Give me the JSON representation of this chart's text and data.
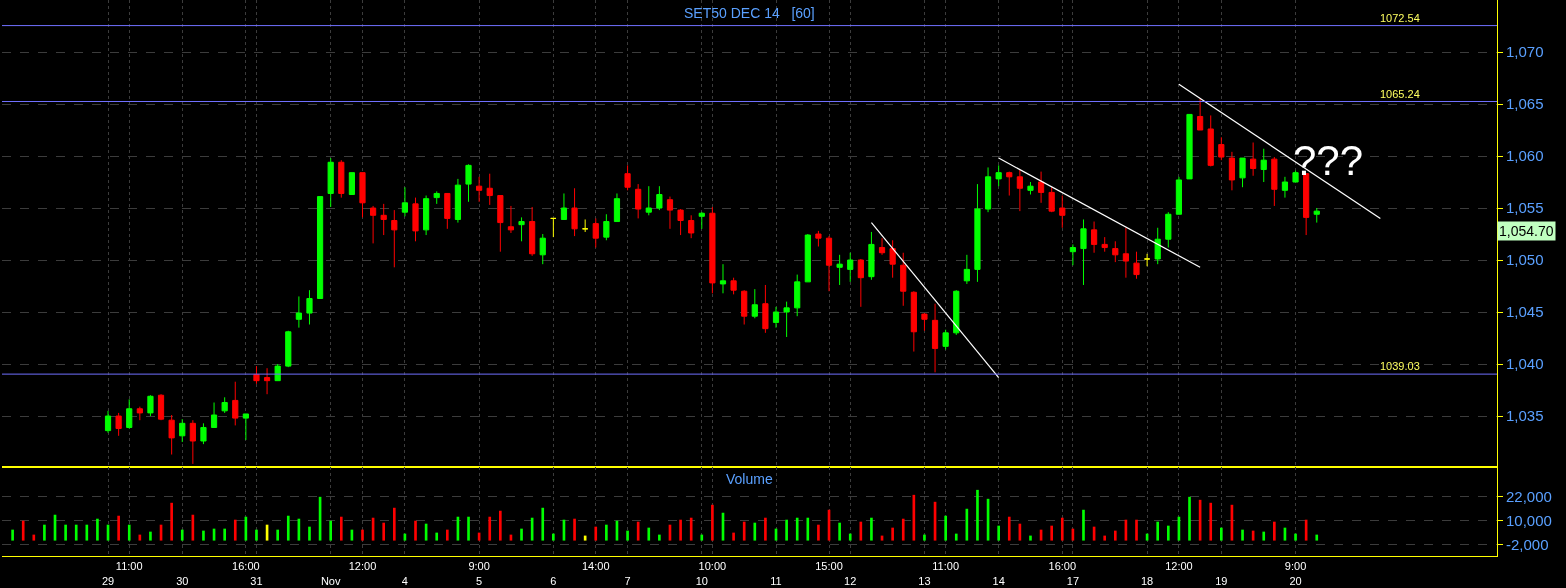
{
  "chart_data": [
    {
      "type": "candlestick",
      "title": "SET50 DEC 14   [60]",
      "categories": [
        null,
        null,
        null,
        null,
        null,
        null,
        null,
        null,
        null,
        null,
        null,
        null,
        null,
        null,
        null,
        null,
        null,
        null,
        null,
        null,
        null,
        null,
        null,
        null,
        null,
        null,
        null,
        null,
        null,
        null,
        null,
        null,
        null,
        null,
        null,
        null,
        null,
        null,
        null,
        null,
        null,
        null,
        null,
        null,
        null,
        null,
        null,
        null,
        null,
        null,
        null,
        null,
        null,
        null,
        null,
        null,
        null,
        null,
        null,
        null,
        null,
        null,
        null,
        null,
        null,
        null,
        null,
        null,
        null,
        null,
        null,
        null,
        null,
        null,
        null,
        null,
        null,
        null,
        null,
        null,
        null,
        null,
        null,
        null,
        null,
        null,
        null,
        null,
        null,
        null,
        null,
        null,
        null,
        null,
        null,
        null,
        null,
        null,
        null,
        null,
        null,
        null,
        null,
        null,
        null,
        null,
        null,
        null,
        null,
        null,
        null,
        null,
        null,
        null,
        null,
        null,
        null,
        null,
        null,
        null,
        null,
        null,
        null,
        null,
        null,
        null,
        null,
        null,
        null,
        null,
        null,
        null,
        null,
        null,
        null,
        null,
        null,
        null,
        null,
        null,
        null
      ],
      "ohlc": [
        null,
        null,
        null,
        null,
        null,
        null,
        null,
        null,
        null,
        [
          1033.6,
          1035.5,
          1033.4,
          1035.0
        ],
        [
          1035.0,
          1035.3,
          1033.1,
          1033.8
        ],
        [
          1033.9,
          1036.6,
          1033.8,
          1035.7
        ],
        [
          1035.7,
          1035.9,
          1034.6,
          1035.3
        ],
        [
          1035.3,
          1037.0,
          1035.0,
          1036.9
        ],
        [
          1037.0,
          1037.1,
          1034.6,
          1034.7
        ],
        [
          1034.6,
          1035.1,
          1031.3,
          1032.9
        ],
        [
          1033.1,
          1034.7,
          1032.5,
          1034.3
        ],
        [
          1034.3,
          1034.6,
          1030.4,
          1032.6
        ],
        [
          1032.6,
          1034.3,
          1032.3,
          1033.9
        ],
        [
          1033.9,
          1036.3,
          1033.9,
          1035.1
        ],
        [
          1035.5,
          1036.8,
          1035.3,
          1036.3
        ],
        [
          1036.5,
          1038.3,
          1034.1,
          1034.8
        ],
        [
          1034.8,
          1035.2,
          1032.7,
          1035.2
        ],
        [
          1039.0,
          1039.8,
          1038.1,
          1038.4
        ],
        [
          1038.7,
          1039.6,
          1037.1,
          1038.4
        ],
        [
          1038.4,
          1040.0,
          1038.4,
          1039.8
        ],
        [
          1039.8,
          1043.2,
          1039.7,
          1043.1
        ],
        [
          1044.3,
          1046.5,
          1043.5,
          1044.9
        ],
        [
          1044.9,
          1047.1,
          1043.8,
          1046.3
        ],
        [
          1046.3,
          1056.1,
          1046.3,
          1056.1
        ],
        [
          1056.4,
          1059.8,
          1055.1,
          1059.4
        ],
        [
          1059.4,
          1059.6,
          1056.0,
          1056.4
        ],
        [
          1056.3,
          1058.4,
          1056.3,
          1058.4
        ],
        [
          1058.4,
          1058.4,
          1054.1,
          1055.5
        ],
        [
          1055.0,
          1055.2,
          1051.6,
          1054.3
        ],
        [
          1054.3,
          1055.4,
          1052.4,
          1053.9
        ],
        [
          1053.8,
          1054.8,
          1049.3,
          1052.9
        ],
        [
          1054.6,
          1057.0,
          1054.2,
          1055.5
        ],
        [
          1055.4,
          1056.0,
          1051.8,
          1052.8
        ],
        [
          1052.9,
          1056.2,
          1052.4,
          1055.9
        ],
        [
          1056.0,
          1056.6,
          1055.4,
          1056.4
        ],
        [
          1056.4,
          1056.4,
          1053.0,
          1054.0
        ],
        [
          1053.9,
          1057.8,
          1053.6,
          1057.2
        ],
        [
          1057.3,
          1059.2,
          1055.6,
          1059.1
        ],
        [
          1057.1,
          1058.0,
          1055.6,
          1056.7
        ],
        [
          1056.9,
          1058.3,
          1055.3,
          1056.2
        ],
        [
          1056.2,
          1056.2,
          1050.8,
          1053.6
        ],
        [
          1053.2,
          1055.2,
          1052.6,
          1052.9
        ],
        [
          1053.4,
          1054.1,
          1051.8,
          1053.7
        ],
        [
          1053.7,
          1055.1,
          1050.4,
          1050.6
        ],
        [
          1050.5,
          1052.5,
          1049.6,
          1052.1
        ],
        [
          1054.0,
          1054.0,
          1052.2,
          1054.0
        ],
        [
          1053.9,
          1056.4,
          1053.9,
          1055.0
        ],
        [
          1055.0,
          1056.9,
          1052.3,
          1053.0
        ],
        [
          1053.0,
          1053.9,
          1052.7,
          1053.0
        ],
        [
          1053.5,
          1054.0,
          1051.2,
          1052.1
        ],
        [
          1052.2,
          1054.4,
          1051.9,
          1053.7
        ],
        [
          1053.7,
          1056.4,
          1053.7,
          1055.9
        ],
        [
          1058.3,
          1059.1,
          1056.7,
          1057.0
        ],
        [
          1056.8,
          1057.3,
          1054.0,
          1054.9
        ],
        [
          1054.6,
          1057.1,
          1054.3,
          1055.0
        ],
        [
          1055.0,
          1057.1,
          1054.8,
          1056.3
        ],
        [
          1055.8,
          1056.1,
          1053.0,
          1054.8
        ],
        [
          1054.8,
          1054.9,
          1052.4,
          1053.8
        ],
        [
          1053.8,
          1054.3,
          1052.1,
          1052.6
        ],
        [
          1054.2,
          1054.6,
          1053.0,
          1054.5
        ],
        [
          1054.5,
          1055.1,
          1046.8,
          1047.8
        ],
        [
          1047.7,
          1049.6,
          1046.8,
          1048.0
        ],
        [
          1048.0,
          1048.3,
          1046.7,
          1047.1
        ],
        [
          1047.0,
          1047.1,
          1043.8,
          1044.6
        ],
        [
          1044.6,
          1047.2,
          1044.4,
          1045.7
        ],
        [
          1045.8,
          1047.6,
          1043.0,
          1043.4
        ],
        [
          1044.0,
          1045.5,
          1043.5,
          1045.0
        ],
        [
          1045.0,
          1046.0,
          1042.6,
          1045.4
        ],
        [
          1045.4,
          1048.6,
          1044.6,
          1047.9
        ],
        [
          1047.9,
          1052.5,
          1047.9,
          1052.4
        ],
        [
          1052.5,
          1052.8,
          1051.3,
          1052.1
        ],
        [
          1052.1,
          1052.3,
          1047.0,
          1049.5
        ],
        [
          1049.3,
          1050.5,
          1047.6,
          1049.6
        ],
        [
          1049.1,
          1050.7,
          1047.9,
          1050.0
        ],
        [
          1050.0,
          1050.1,
          1045.5,
          1048.3
        ],
        [
          1048.4,
          1052.7,
          1048.1,
          1051.5
        ],
        [
          1051.2,
          1052.1,
          1050.5,
          1050.7
        ],
        [
          1051.1,
          1051.9,
          1048.3,
          1049.6
        ],
        [
          1049.5,
          1050.7,
          1045.6,
          1047.0
        ],
        [
          1046.9,
          1047.0,
          1041.2,
          1043.1
        ],
        [
          1044.8,
          1044.9,
          1043.2,
          1044.3
        ],
        [
          1044.2,
          1045.8,
          1039.2,
          1041.5
        ],
        [
          1041.7,
          1043.3,
          1041.4,
          1043.0
        ],
        [
          1043.0,
          1047.1,
          1042.8,
          1047.0
        ],
        [
          1048.0,
          1050.5,
          1047.7,
          1049.1
        ],
        [
          1049.1,
          1057.3,
          1047.9,
          1054.9
        ],
        [
          1054.9,
          1058.9,
          1054.6,
          1058.0
        ],
        [
          1057.8,
          1059.1,
          1057.1,
          1058.4
        ],
        [
          1058.4,
          1058.5,
          1056.2,
          1058.0
        ],
        [
          1058.0,
          1058.7,
          1054.7,
          1056.9
        ],
        [
          1056.7,
          1057.5,
          1056.3,
          1057.1
        ],
        [
          1057.5,
          1058.5,
          1055.5,
          1056.5
        ],
        [
          1056.5,
          1057.0,
          1054.6,
          1054.7
        ],
        [
          1055.0,
          1056.2,
          1053.1,
          1054.3
        ],
        [
          1050.8,
          1051.5,
          1049.5,
          1051.2
        ],
        [
          1051.1,
          1053.9,
          1047.6,
          1053.0
        ],
        [
          1052.9,
          1053.7,
          1050.7,
          1051.5
        ],
        [
          1051.5,
          1052.2,
          1050.8,
          1051.2
        ],
        [
          1051.1,
          1051.8,
          1049.8,
          1050.5
        ],
        [
          1050.6,
          1053.1,
          1048.3,
          1049.9
        ],
        [
          1049.7,
          1050.8,
          1048.2,
          1048.6
        ],
        [
          1050.1,
          1050.6,
          1049.4,
          1050.1
        ],
        [
          1050.1,
          1053.1,
          1049.6,
          1052.0
        ],
        [
          1052.0,
          1054.6,
          1051.2,
          1054.4
        ],
        [
          1054.4,
          1058.0,
          1054.4,
          1057.7
        ],
        [
          1057.8,
          1064.0,
          1057.8,
          1064.0
        ],
        [
          1063.8,
          1065.5,
          1062.5,
          1062.5
        ],
        [
          1062.6,
          1063.9,
          1059.0,
          1059.1
        ],
        [
          1061.1,
          1061.8,
          1059.6,
          1059.9
        ],
        [
          1059.8,
          1060.4,
          1056.7,
          1057.7
        ],
        [
          1057.9,
          1059.8,
          1057.0,
          1059.8
        ],
        [
          1059.7,
          1061.3,
          1058.1,
          1058.8
        ],
        [
          1058.7,
          1060.7,
          1057.5,
          1059.6
        ],
        [
          1059.7,
          1059.9,
          1055.2,
          1056.8
        ],
        [
          1056.7,
          1058.0,
          1056.0,
          1057.5
        ],
        [
          1057.5,
          1058.6,
          1057.5,
          1058.4
        ],
        [
          1058.3,
          1058.3,
          1052.4,
          1054.1
        ],
        [
          1054.4,
          1055.0,
          1053.6,
          1054.7
        ],
        null,
        null,
        null,
        null,
        null,
        null,
        null,
        null,
        null,
        null,
        null,
        null,
        null,
        null,
        null,
        null,
        null
      ],
      "colors": [
        null,
        null,
        null,
        null,
        null,
        null,
        null,
        null,
        null,
        "#00ff00",
        "#ff0000",
        "#00ff00",
        "#ff0000",
        "#00ff00",
        "#ff0000",
        "#ff0000",
        "#00ff00",
        "#ff0000",
        "#00ff00",
        "#00ff00",
        "#00ff00",
        "#ff0000",
        "#00ff00",
        "#ff0000",
        "#ff0000",
        "#00ff00",
        "#00ff00",
        "#00ff00",
        "#00ff00",
        "#00ff00",
        "#00ff00",
        "#ff0000",
        "#00ff00",
        "#ff0000",
        "#ff0000",
        "#ff0000",
        "#ff0000",
        "#00ff00",
        "#ff0000",
        "#00ff00",
        "#00ff00",
        "#ff0000",
        "#00ff00",
        "#00ff00",
        "#ff0000",
        "#ff0000",
        "#ff0000",
        "#ff0000",
        "#00ff00",
        "#ff0000",
        "#00ff00",
        "#ffff00",
        "#00ff00",
        "#ff0000",
        "#ffff00",
        "#ff0000",
        "#00ff00",
        "#00ff00",
        "#ff0000",
        "#ff0000",
        "#00ff00",
        "#00ff00",
        "#ff0000",
        "#ff0000",
        "#ff0000",
        "#00ff00",
        "#ff0000",
        "#00ff00",
        "#ff0000",
        "#ff0000",
        "#00ff00",
        "#ff0000",
        "#00ff00",
        "#00ff00",
        "#00ff00",
        "#00ff00",
        "#ff0000",
        "#ff0000",
        "#00ff00",
        "#00ff00",
        "#ff0000",
        "#00ff00",
        "#ff0000",
        "#ff0000",
        "#ff0000",
        "#ff0000",
        "#ff0000",
        "#ff0000",
        "#00ff00",
        "#00ff00",
        "#00ff00",
        "#00ff00",
        "#00ff00",
        "#00ff00",
        "#ff0000",
        "#ff0000",
        "#00ff00",
        "#ff0000",
        "#ff0000",
        "#ff0000",
        "#00ff00",
        "#00ff00",
        "#ff0000",
        "#ff0000",
        "#ff0000",
        "#ff0000",
        "#ff0000",
        "#ffff00",
        "#00ff00",
        "#00ff00",
        "#00ff00",
        "#00ff00",
        "#ff0000",
        "#ff0000",
        "#ff0000",
        "#ff0000",
        "#00ff00",
        "#ff0000",
        "#00ff00",
        "#ff0000",
        "#00ff00",
        "#00ff00",
        "#ff0000",
        "#00ff00",
        null,
        null,
        null,
        null,
        null,
        null,
        null,
        null,
        null,
        null,
        null,
        null,
        null,
        null,
        null,
        null,
        null
      ],
      "series": [
        {
          "type": "line",
          "color": "#ffffff",
          "values": [
            null,
            null,
            null,
            null,
            null,
            null,
            null,
            null,
            null,
            null,
            null,
            null,
            null,
            null,
            null,
            null,
            null,
            null,
            null,
            null,
            null,
            null,
            null,
            null,
            null,
            null,
            null,
            null,
            null,
            null,
            null,
            null,
            null,
            null,
            null,
            null,
            null,
            null,
            null,
            null,
            null,
            null,
            null,
            null,
            null,
            null,
            null,
            null,
            null,
            null,
            null,
            null,
            null,
            null,
            null,
            null,
            null,
            null,
            null,
            null,
            null,
            null,
            null,
            null,
            null,
            null,
            null,
            null,
            null,
            null,
            null,
            null,
            null,
            null,
            null,
            null,
            null,
            null,
            null,
            null,
            null,
            1053.6,
            null,
            null,
            null,
            null,
            null,
            null,
            null,
            null,
            null,
            null,
            null,
            1038.7,
            null,
            null,
            null,
            null,
            null,
            null,
            null,
            null,
            null,
            null,
            null,
            null,
            null,
            null,
            null,
            null,
            null,
            null,
            null,
            null,
            null,
            null,
            null,
            null,
            null,
            null,
            null,
            null,
            null,
            null,
            null,
            null,
            null,
            null,
            null,
            null,
            null,
            null,
            null,
            null,
            null,
            null,
            null,
            null,
            null,
            null,
            null
          ]
        },
        {
          "type": "line",
          "color": "#ffffff",
          "values": [
            null,
            null,
            null,
            null,
            null,
            null,
            null,
            null,
            null,
            null,
            null,
            null,
            null,
            null,
            null,
            null,
            null,
            null,
            null,
            null,
            null,
            null,
            null,
            null,
            null,
            null,
            null,
            null,
            null,
            null,
            null,
            null,
            null,
            null,
            null,
            null,
            null,
            null,
            null,
            null,
            null,
            null,
            null,
            null,
            null,
            null,
            null,
            null,
            null,
            null,
            null,
            null,
            null,
            null,
            null,
            null,
            null,
            null,
            null,
            null,
            null,
            null,
            null,
            null,
            null,
            null,
            null,
            null,
            null,
            null,
            null,
            null,
            null,
            null,
            null,
            null,
            null,
            null,
            null,
            null,
            null,
            null,
            null,
            null,
            null,
            null,
            null,
            null,
            null,
            null,
            null,
            null,
            null,
            1059.8,
            null,
            null,
            null,
            null,
            null,
            null,
            null,
            null,
            null,
            null,
            null,
            null,
            null,
            null,
            null,
            null,
            null,
            null,
            1049.3,
            null,
            null,
            null,
            null,
            null,
            null,
            null,
            null,
            null,
            null,
            null,
            null,
            null,
            null,
            null,
            null,
            null,
            null,
            null,
            null,
            null,
            null,
            null,
            null,
            null,
            null,
            null,
            null
          ]
        },
        {
          "type": "line",
          "color": "#ffffff",
          "values": [
            null,
            null,
            null,
            null,
            null,
            null,
            null,
            null,
            null,
            null,
            null,
            null,
            null,
            null,
            null,
            null,
            null,
            null,
            null,
            null,
            null,
            null,
            null,
            null,
            null,
            null,
            null,
            null,
            null,
            null,
            null,
            null,
            null,
            null,
            null,
            null,
            null,
            null,
            null,
            null,
            null,
            null,
            null,
            null,
            null,
            null,
            null,
            null,
            null,
            null,
            null,
            null,
            null,
            null,
            null,
            null,
            null,
            null,
            null,
            null,
            null,
            null,
            null,
            null,
            null,
            null,
            null,
            null,
            null,
            null,
            null,
            null,
            null,
            null,
            null,
            null,
            null,
            null,
            null,
            null,
            null,
            null,
            null,
            null,
            null,
            null,
            null,
            null,
            null,
            null,
            null,
            null,
            null,
            null,
            null,
            null,
            null,
            null,
            null,
            null,
            null,
            null,
            null,
            null,
            null,
            null,
            null,
            null,
            null,
            null,
            1066.9,
            null,
            null,
            null,
            null,
            null,
            null,
            null,
            null,
            null,
            null,
            null,
            null,
            null,
            null,
            null,
            null,
            null,
            null,
            1054.0,
            null,
            null,
            null,
            null,
            null,
            null,
            null,
            null,
            null,
            null,
            null
          ]
        }
      ],
      "ylim": [
        1030.1,
        1075.0
      ],
      "yticks": [
        {
          "value": 1035,
          "label": "1,035"
        },
        {
          "value": 1040,
          "label": "1,040"
        },
        {
          "value": 1045,
          "label": "1,045"
        },
        {
          "value": 1050,
          "label": "1,050"
        },
        {
          "value": 1055,
          "label": "1,055"
        },
        {
          "value": 1060,
          "label": "1,060"
        },
        {
          "value": 1065,
          "label": "1,065"
        },
        {
          "value": 1070,
          "label": "1,070"
        }
      ],
      "tick_labels": "y",
      "grid": true,
      "ref_lines": [
        {
          "axis": "y",
          "value": 1072.54,
          "label": "1072.54",
          "color": "#7070ff"
        },
        {
          "axis": "y",
          "value": 1065.24,
          "label": "1065.24",
          "color": "#7070ff"
        },
        {
          "axis": "y",
          "value": 1039.03,
          "label": "1039.03",
          "color": "#7070ff"
        }
      ],
      "annotations": [
        "???",
        "1,054.70"
      ]
    },
    {
      "type": "bar",
      "title": "Volume",
      "categories": [
        null,
        null,
        null,
        null,
        null,
        null,
        null,
        null,
        null,
        "\n29",
        null,
        "11:00",
        null,
        null,
        null,
        null,
        "\n30",
        null,
        null,
        null,
        null,
        null,
        "16:00",
        "\n31",
        null,
        null,
        null,
        null,
        null,
        null,
        "\nNov",
        null,
        null,
        "12:00",
        null,
        null,
        null,
        "\n4",
        null,
        null,
        null,
        null,
        null,
        null,
        "9:00\n5",
        null,
        null,
        null,
        null,
        null,
        null,
        "\n6",
        null,
        null,
        null,
        "14:00",
        null,
        null,
        "\n7",
        null,
        null,
        null,
        null,
        null,
        null,
        "\n10",
        "10:00",
        null,
        null,
        null,
        null,
        null,
        "\n11",
        null,
        null,
        null,
        null,
        "15:00",
        null,
        "\n12",
        null,
        null,
        null,
        null,
        null,
        null,
        "\n13",
        null,
        "11:00",
        null,
        null,
        null,
        null,
        "\n14",
        null,
        null,
        null,
        null,
        null,
        "16:00",
        "\n17",
        null,
        null,
        null,
        null,
        null,
        null,
        "\n18",
        null,
        null,
        "12:00",
        null,
        null,
        null,
        "\n19",
        null,
        null,
        null,
        null,
        null,
        null,
        "9:00\n20",
        null,
        null,
        null,
        null,
        null,
        null,
        null,
        null,
        null,
        null,
        null,
        null,
        null,
        null,
        null,
        null,
        null,
        null,
        null
      ],
      "values": [
        5500,
        10000,
        3000,
        8000,
        13000,
        8000,
        8000,
        8000,
        11000,
        8000,
        12500,
        8000,
        3000,
        4500,
        8000,
        19000,
        5500,
        13000,
        5000,
        6000,
        6000,
        10500,
        12000,
        5500,
        8000,
        5500,
        12500,
        11000,
        7000,
        22000,
        10000,
        12000,
        5500,
        5500,
        11500,
        9000,
        16500,
        3500,
        10000,
        8500,
        4000,
        5500,
        12000,
        12000,
        4000,
        12000,
        15000,
        3000,
        6000,
        11500,
        16500,
        3500,
        10500,
        11000,
        2500,
        7000,
        8000,
        10000,
        5000,
        9500,
        6500,
        3000,
        8000,
        10500,
        11500,
        3000,
        18000,
        14000,
        4000,
        9500,
        9000,
        11500,
        6000,
        10500,
        11500,
        11500,
        8000,
        15500,
        9000,
        3500,
        9500,
        11500,
        2500,
        6500,
        11000,
        23000,
        3000,
        19500,
        12500,
        3500,
        16000,
        25500,
        21000,
        7500,
        12000,
        8500,
        2500,
        5500,
        7500,
        11500,
        6000,
        15500,
        7000,
        2500,
        5000,
        10500,
        10500,
        3500,
        9500,
        7500,
        12000,
        22000,
        20500,
        19000,
        6500,
        18000,
        5500,
        5000,
        4500,
        9500,
        6500,
        3500,
        10500,
        3000,
        null,
        null,
        null,
        null,
        null,
        null,
        null,
        null,
        null,
        null,
        null,
        null,
        null,
        null,
        null,
        null,
        null
      ],
      "colors": [
        "#00ff00",
        "#ff0000",
        "#ff0000",
        "#00ff00",
        "#00ff00",
        "#00ff00",
        "#00ff00",
        "#00ff00",
        "#00ff00",
        "#00ff00",
        "#ff0000",
        "#00ff00",
        "#ff0000",
        "#00ff00",
        "#ff0000",
        "#ff0000",
        "#00ff00",
        "#ff0000",
        "#00ff00",
        "#00ff00",
        "#00ff00",
        "#ff0000",
        "#00ff00",
        "#00ff00",
        "#ffff00",
        "#00ff00",
        "#00ff00",
        "#00ff00",
        "#00ff00",
        "#00ff00",
        "#00ff00",
        "#ff0000",
        "#00ff00",
        "#ff0000",
        "#ff0000",
        "#ff0000",
        "#ff0000",
        "#00ff00",
        "#ff0000",
        "#00ff00",
        "#00ff00",
        "#ff0000",
        "#00ff00",
        "#00ff00",
        "#ff0000",
        "#ff0000",
        "#ff0000",
        "#ff0000",
        "#00ff00",
        "#00ff00",
        "#00ff00",
        "#00ff00",
        "#00ff00",
        "#ff0000",
        "#ffff00",
        "#ff0000",
        "#00ff00",
        "#00ff00",
        "#00ff00",
        "#ff0000",
        "#00ff00",
        "#00ff00",
        "#ff0000",
        "#ff0000",
        "#ff0000",
        "#00ff00",
        "#ff0000",
        "#00ff00",
        "#ff0000",
        "#ff0000",
        "#00ff00",
        "#ff0000",
        "#00ff00",
        "#00ff00",
        "#00ff00",
        "#00ff00",
        "#ff0000",
        "#ff0000",
        "#00ff00",
        "#00ff00",
        "#ff0000",
        "#00ff00",
        "#ff0000",
        "#ff0000",
        "#ff0000",
        "#ff0000",
        "#00ff00",
        "#ff0000",
        "#00ff00",
        "#00ff00",
        "#00ff00",
        "#00ff00",
        "#00ff00",
        "#00ff00",
        "#ff0000",
        "#ff0000",
        "#00ff00",
        "#ff0000",
        "#ff0000",
        "#ff0000",
        "#ff0000",
        "#00ff00",
        "#ff0000",
        "#ff0000",
        "#ff0000",
        "#ff0000",
        "#ff0000",
        "#00ff00",
        "#00ff00",
        "#00ff00",
        "#00ff00",
        "#00ff00",
        "#ff0000",
        "#ff0000",
        "#00ff00",
        "#ff0000",
        "#00ff00",
        "#ff0000",
        "#00ff00",
        "#ff0000",
        "#00ff00",
        "#00ff00",
        "#ff0000",
        "#00ff00",
        null,
        null,
        null,
        null,
        null,
        null,
        null,
        null,
        null,
        null,
        null,
        null,
        null,
        null,
        null,
        null,
        null
      ],
      "ylim": [
        -7750,
        37000
      ],
      "yticks": [
        {
          "value": -2000,
          "label": "-2,000"
        },
        {
          "value": 10000,
          "label": "10,000"
        },
        {
          "value": 22000,
          "label": "22,000"
        }
      ],
      "grid": true
    }
  ]
}
